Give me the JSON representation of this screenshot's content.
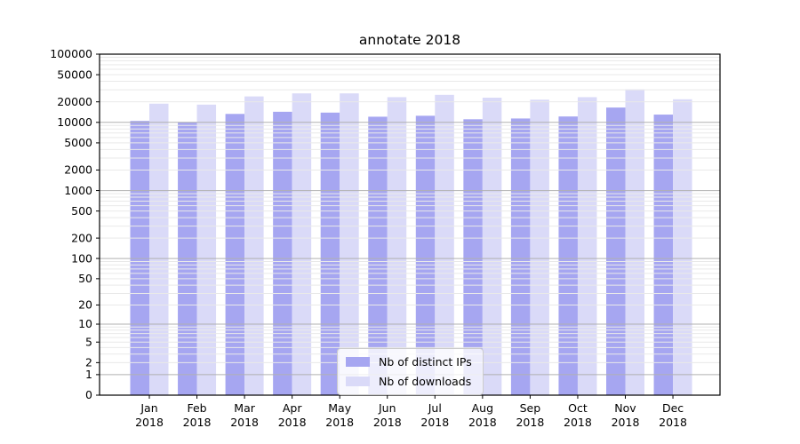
{
  "chart_data": {
    "type": "bar",
    "title": "annotate 2018",
    "categories": [
      "Jan 2018",
      "Feb 2018",
      "Mar 2018",
      "Apr 2018",
      "May 2018",
      "Jun 2018",
      "Jul 2018",
      "Aug 2018",
      "Sep 2018",
      "Oct 2018",
      "Nov 2018",
      "Dec 2018"
    ],
    "months": [
      "Jan",
      "Feb",
      "Mar",
      "Apr",
      "May",
      "Jun",
      "Jul",
      "Aug",
      "Sep",
      "Oct",
      "Nov",
      "Dec"
    ],
    "year_label": "2018",
    "series": [
      {
        "name": "Nb of distinct IPs",
        "color": "#a6a6f1",
        "values": [
          10500,
          9950,
          13300,
          14300,
          13900,
          12100,
          12500,
          11100,
          11400,
          12200,
          16500,
          13000
        ]
      },
      {
        "name": "Nb of downloads",
        "color": "#dadaf8",
        "values": [
          18800,
          18200,
          24000,
          26600,
          26600,
          23400,
          25300,
          23000,
          21500,
          23400,
          30400,
          21800
        ]
      }
    ],
    "xlabel": "",
    "ylabel": "",
    "y_scale": "symlog",
    "ylim": [
      0,
      100000
    ],
    "y_ticks": [
      0,
      1,
      2,
      5,
      10,
      20,
      50,
      100,
      200,
      500,
      1000,
      2000,
      5000,
      10000,
      20000,
      50000,
      100000
    ],
    "grid": {
      "on": true,
      "major_color": "#b0b0b0",
      "minor_color": "#e9e9e9"
    },
    "legend_position": "lower center",
    "spine_color": "#000000",
    "text_color": "#000000"
  },
  "legend": {
    "items": [
      {
        "label": "Nb of distinct IPs"
      },
      {
        "label": "Nb of downloads"
      }
    ]
  }
}
